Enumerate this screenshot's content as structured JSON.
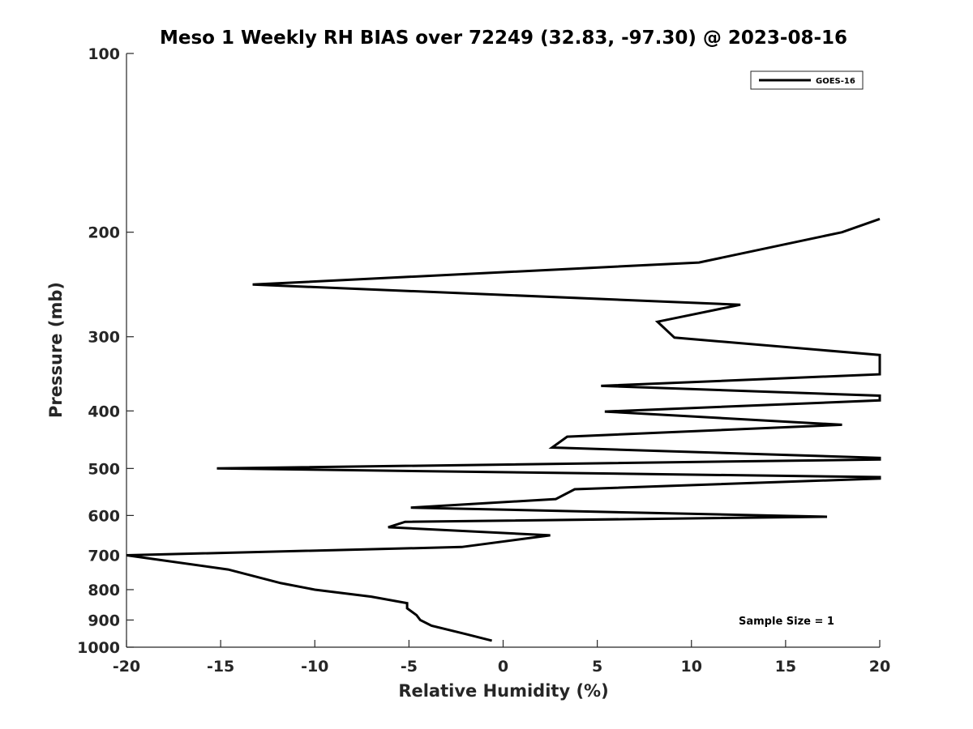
{
  "chart_data": {
    "type": "line",
    "title": "Meso 1 Weekly RH BIAS over 72249 (32.83, -97.30) @ 2023-08-16",
    "xlabel": "Relative Humidity (%)",
    "ylabel": "Pressure (mb)",
    "xlim": [
      -20,
      20
    ],
    "ylim": [
      100,
      1000
    ],
    "y_scale": "log",
    "y_reversed": true,
    "grid": false,
    "x_ticks": [
      -20,
      -15,
      -10,
      -5,
      0,
      5,
      10,
      15,
      20
    ],
    "x_tick_labels": [
      "-20",
      "-15",
      "-10",
      "-5",
      "0",
      "5",
      "10",
      "15",
      "20"
    ],
    "y_ticks": [
      100,
      200,
      300,
      400,
      500,
      600,
      700,
      800,
      900,
      1000
    ],
    "y_tick_labels": [
      "100",
      "200",
      "300",
      "400",
      "500",
      "600",
      "700",
      "800",
      "900",
      "1000"
    ],
    "legend": {
      "position": "top-right",
      "entries": [
        "GOES-16"
      ]
    },
    "annotations": [
      {
        "text": "Sample Size = 1",
        "position": "bottom-right"
      }
    ],
    "series": [
      {
        "name": "GOES-16",
        "color": "#000000",
        "x": [
          20,
          18,
          10.4,
          -13.3,
          12.6,
          8.2,
          9.1,
          20,
          20,
          5.2,
          20,
          20,
          5.4,
          18,
          3.4,
          2.6,
          20,
          20,
          -15.2,
          20,
          20,
          3.8,
          2.8,
          -4.9,
          17.2,
          -5.2,
          -6.1,
          2.5,
          -2.2,
          -20,
          -14.6,
          -11.8,
          -10.0,
          -7.0,
          -5.1,
          -5.1,
          -4.6,
          -4.4,
          -3.8,
          -2.0,
          -0.6
        ],
        "y": [
          190,
          200,
          225,
          245,
          265,
          283,
          301,
          322,
          347,
          363,
          377,
          384,
          401,
          422,
          442,
          461,
          480,
          483,
          500,
          517,
          520,
          542,
          563,
          582,
          603,
          615,
          628,
          648,
          678,
          700,
          740,
          780,
          800,
          822,
          843,
          860,
          883,
          900,
          920,
          950,
          975
        ]
      }
    ]
  }
}
